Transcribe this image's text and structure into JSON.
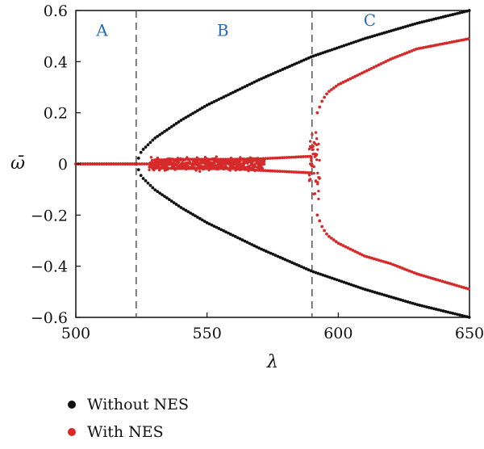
{
  "chart_data": {
    "type": "scatter",
    "xlabel": "λ",
    "ylabel": "ω̄",
    "xlim": [
      500,
      650
    ],
    "ylim": [
      -0.6,
      0.6
    ],
    "xticks": [
      "500",
      "550",
      "600",
      "650"
    ],
    "yticks": [
      "0.6",
      "0.4",
      "0.2",
      "0",
      "-0.2",
      "-0.4",
      "-0.6"
    ],
    "ytick_values": [
      0.6,
      0.4,
      0.2,
      0,
      -0.2,
      -0.4,
      -0.6
    ],
    "xtick_values": [
      500,
      550,
      600,
      650
    ],
    "dividers": [
      523,
      590
    ],
    "regions": [
      {
        "label": "A",
        "x": 510,
        "y": 0.5
      },
      {
        "label": "B",
        "x": 556,
        "y": 0.5
      },
      {
        "label": "C",
        "x": 612,
        "y": 0.54
      }
    ],
    "series": [
      {
        "name": "Without NES",
        "color": "#111111",
        "branches": [
          {
            "x": [
              500,
              523
            ],
            "y": [
              0,
              0
            ]
          },
          {
            "x": [
              523,
              525,
              530,
              540,
              550,
              560,
              570,
              580,
              590,
              600,
              610,
              620,
              630,
              640,
              650
            ],
            "y": [
              0,
              0.05,
              0.1,
              0.17,
              0.23,
              0.28,
              0.33,
              0.375,
              0.42,
              0.455,
              0.49,
              0.52,
              0.55,
              0.575,
              0.6
            ]
          },
          {
            "x": [
              523,
              525,
              530,
              540,
              550,
              560,
              570,
              580,
              590,
              600,
              610,
              620,
              630,
              640,
              650
            ],
            "y": [
              0,
              -0.05,
              -0.1,
              -0.17,
              -0.23,
              -0.28,
              -0.33,
              -0.375,
              -0.42,
              -0.455,
              -0.49,
              -0.52,
              -0.55,
              -0.575,
              -0.6
            ]
          }
        ]
      },
      {
        "name": "With NES",
        "color": "#d62a2a",
        "branches": [
          {
            "x": [
              500,
              523,
              528
            ],
            "y": [
              0,
              0,
              0
            ]
          },
          {
            "x": [
              530,
              540,
              550,
              560,
              570,
              580,
              590
            ],
            "y": [
              0.015,
              0.018,
              0.018,
              0.018,
              0.02,
              0.025,
              0.03
            ]
          },
          {
            "x": [
              530,
              540,
              550,
              560,
              570,
              580,
              590
            ],
            "y": [
              -0.015,
              -0.018,
              -0.018,
              -0.018,
              -0.025,
              -0.03,
              -0.035
            ]
          },
          {
            "x": [
              592,
              594,
              596,
              600,
              610,
              620,
              630,
              640,
              650
            ],
            "y": [
              0.2,
              0.25,
              0.28,
              0.31,
              0.36,
              0.41,
              0.45,
              0.47,
              0.49
            ]
          },
          {
            "x": [
              592,
              594,
              596,
              600,
              610,
              620,
              630,
              640,
              650
            ],
            "y": [
              -0.2,
              -0.25,
              -0.28,
              -0.31,
              -0.36,
              -0.39,
              -0.43,
              -0.46,
              -0.49
            ]
          }
        ],
        "noise_bands": [
          {
            "x_from": 528,
            "x_to": 572,
            "y_amp": 0.03
          },
          {
            "x_from": 589,
            "x_to": 593,
            "y_amp": 0.16
          }
        ]
      }
    ],
    "legend": "bottom-left"
  }
}
